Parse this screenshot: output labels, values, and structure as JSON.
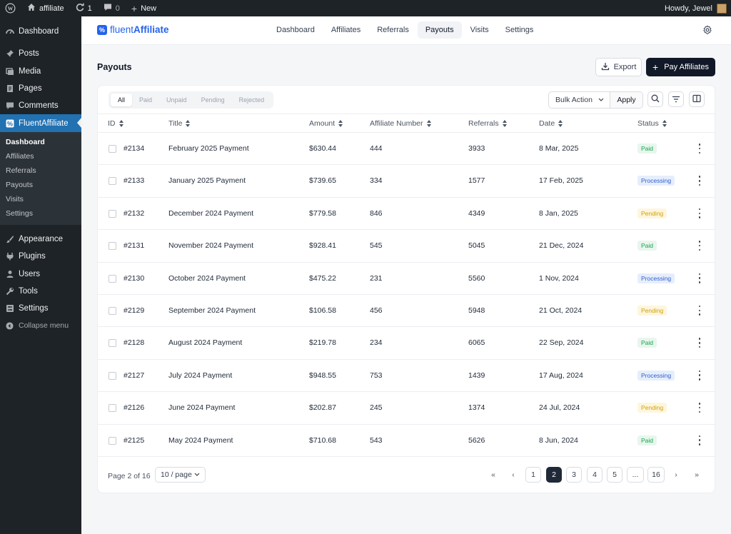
{
  "adminbar": {
    "site_name": "affiliate",
    "updates_count": "1",
    "comments_count": "0",
    "new_label": "New",
    "howdy": "Howdy, Jewel"
  },
  "sidebar": {
    "items_top": [
      {
        "label": "Dashboard",
        "icon": "dashboard-icon"
      },
      {
        "label": "Posts",
        "icon": "pin-icon"
      },
      {
        "label": "Media",
        "icon": "media-icon"
      },
      {
        "label": "Pages",
        "icon": "pages-icon"
      },
      {
        "label": "Comments",
        "icon": "comment-icon"
      },
      {
        "label": "FluentAffiliate",
        "icon": "fluentaffiliate-icon"
      }
    ],
    "submenu": [
      "Dashboard",
      "Affiliates",
      "Referrals",
      "Payouts",
      "Visits",
      "Settings"
    ],
    "items_bottom": [
      {
        "label": "Appearance",
        "icon": "brush-icon"
      },
      {
        "label": "Plugins",
        "icon": "plugin-icon"
      },
      {
        "label": "Users",
        "icon": "user-icon"
      },
      {
        "label": "Tools",
        "icon": "wrench-icon"
      },
      {
        "label": "Settings",
        "icon": "settings-icon"
      }
    ],
    "collapse_label": "Collapse menu"
  },
  "brand": {
    "prefix": "fluent",
    "name": "Affiliate"
  },
  "nav": {
    "links": [
      "Dashboard",
      "Affiliates",
      "Referrals",
      "Payouts",
      "Visits",
      "Settings"
    ],
    "active": "Payouts"
  },
  "page": {
    "title": "Payouts",
    "export_label": "Export",
    "pay_label": "Pay Affiliates"
  },
  "filters": [
    "All",
    "Paid",
    "Unpaid",
    "Pending",
    "Rejected"
  ],
  "bulk": {
    "label": "Bulk Action",
    "apply": "Apply"
  },
  "table": {
    "columns": [
      "ID",
      "Title",
      "Amount",
      "Affiliate Number",
      "Referrals",
      "Date",
      "Status"
    ],
    "rows": [
      {
        "id": "#2134",
        "title": "February 2025 Payment",
        "amount": "$630.44",
        "affiliate": "444",
        "referrals": "3933",
        "date": "8 Mar, 2025",
        "status": "Paid"
      },
      {
        "id": "#2133",
        "title": "January 2025 Payment",
        "amount": "$739.65",
        "affiliate": "334",
        "referrals": "1577",
        "date": "17 Feb, 2025",
        "status": "Processing"
      },
      {
        "id": "#2132",
        "title": "December 2024 Payment",
        "amount": "$779.58",
        "affiliate": "846",
        "referrals": "4349",
        "date": "8 Jan, 2025",
        "status": "Pending"
      },
      {
        "id": "#2131",
        "title": "November 2024 Payment",
        "amount": "$928.41",
        "affiliate": "545",
        "referrals": "5045",
        "date": "21 Dec, 2024",
        "status": "Paid"
      },
      {
        "id": "#2130",
        "title": "October 2024 Payment",
        "amount": "$475.22",
        "affiliate": "231",
        "referrals": "5560",
        "date": "1 Nov, 2024",
        "status": "Processing"
      },
      {
        "id": "#2129",
        "title": "September 2024 Payment",
        "amount": "$106.58",
        "affiliate": "456",
        "referrals": "5948",
        "date": "21 Oct, 2024",
        "status": "Pending"
      },
      {
        "id": "#2128",
        "title": "August 2024 Payment",
        "amount": "$219.78",
        "affiliate": "234",
        "referrals": "6065",
        "date": "22 Sep, 2024",
        "status": "Paid"
      },
      {
        "id": "#2127",
        "title": "July 2024 Payment",
        "amount": "$948.55",
        "affiliate": "753",
        "referrals": "1439",
        "date": "17 Aug, 2024",
        "status": "Processing"
      },
      {
        "id": "#2126",
        "title": "June 2024 Payment",
        "amount": "$202.87",
        "affiliate": "245",
        "referrals": "1374",
        "date": "24 Jul, 2024",
        "status": "Pending"
      },
      {
        "id": "#2125",
        "title": "May 2024 Payment",
        "amount": "$710.68",
        "affiliate": "543",
        "referrals": "5626",
        "date": "8 Jun, 2024",
        "status": "Paid"
      }
    ]
  },
  "pagination": {
    "info": "Page 2 of 16",
    "per_page": "10 / page",
    "pages": [
      "1",
      "2",
      "3",
      "4",
      "5",
      "...",
      "16"
    ],
    "current": "2"
  },
  "colors": {
    "accent": "#2271b1",
    "brand": "#2563eb",
    "paid": "#16a34a",
    "processing": "#2f5fcf",
    "pending": "#d4a106"
  }
}
